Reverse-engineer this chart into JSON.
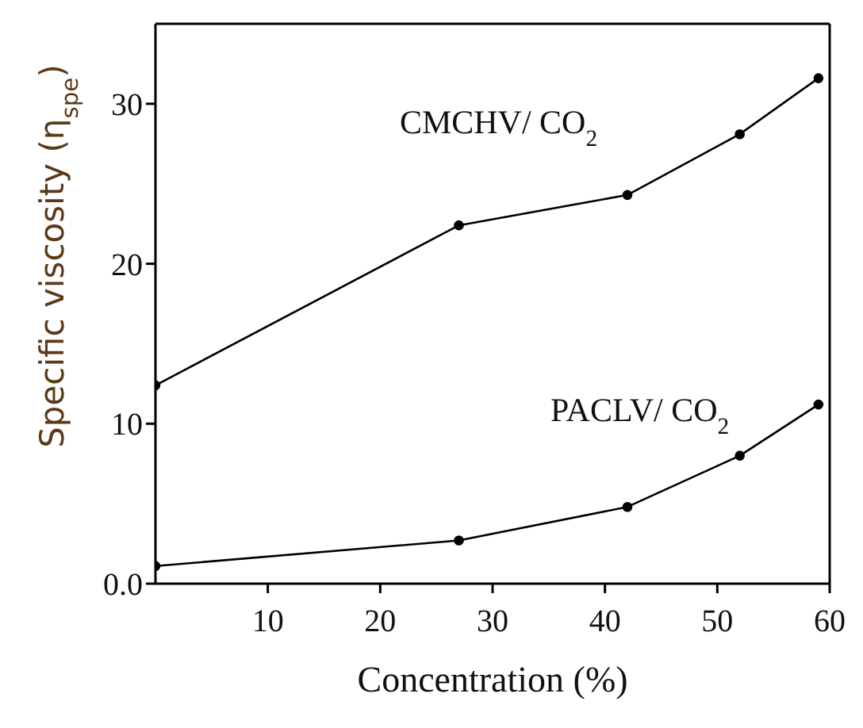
{
  "chart_data": {
    "type": "line",
    "xlabel": "Concentration (%)",
    "ylabel": "Specific viscosity (η$_{spe}$)",
    "x": [
      0,
      27,
      42,
      52,
      59
    ],
    "series": [
      {
        "name": "CMCHV/ CO$_{2}$",
        "color": "#000000",
        "values": [
          12.4,
          22.4,
          24.3,
          28.1,
          31.6
        ]
      },
      {
        "name": "PACLV/ CO$_{2}$",
        "color": "#000000",
        "values": [
          1.1,
          2.7,
          4.8,
          8.0,
          11.2
        ]
      }
    ],
    "xlim": [
      0,
      60
    ],
    "xticks": [
      10,
      20,
      30,
      40,
      50,
      60
    ],
    "ylim": [
      0,
      35
    ],
    "yticks": [
      {
        "value": 0,
        "label": "0.0"
      },
      10,
      20,
      30
    ],
    "marker": "circle",
    "line_style": "solid"
  }
}
